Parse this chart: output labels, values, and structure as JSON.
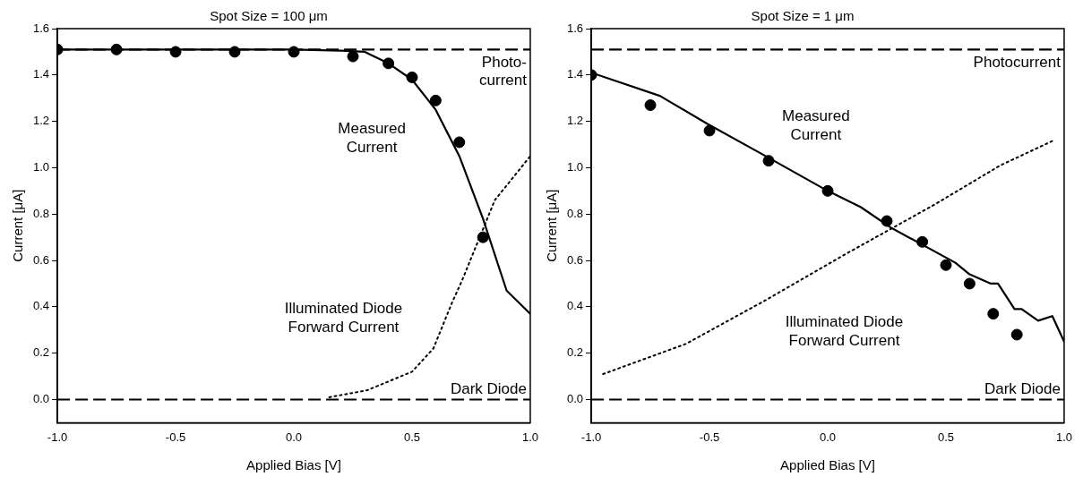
{
  "chart_data": [
    {
      "type": "line",
      "title": "Spot Size = 100 μm",
      "xlabel": "Applied Bias [V]",
      "ylabel": "Current [μA]",
      "xlim": [
        -1,
        1
      ],
      "xticks": [
        {
          "value": -1,
          "label": "-1.0"
        },
        {
          "value": -0.5,
          "label": "-0.5"
        },
        {
          "value": 0,
          "label": "0.0"
        },
        {
          "value": 0.5,
          "label": "0.5"
        },
        {
          "value": 1,
          "label": "1.0"
        }
      ],
      "ylim": [
        -0.1,
        1.6
      ],
      "yticks": [
        {
          "value": 0,
          "label": "0.0"
        },
        {
          "value": 0.2,
          "label": "0.2"
        },
        {
          "value": 0.4,
          "label": "0.4"
        },
        {
          "value": 0.6,
          "label": "0.6"
        },
        {
          "value": 0.8,
          "label": "0.8"
        },
        {
          "value": 1,
          "label": "1.0"
        },
        {
          "value": 1.2,
          "label": "1.2"
        },
        {
          "value": 1.4,
          "label": "1.4"
        },
        {
          "value": 1.6,
          "label": "1.6"
        }
      ],
      "grid": false,
      "legend": false,
      "series": [
        {
          "type": "line",
          "color": "#000000",
          "line_style": "solid",
          "marker": "none",
          "x": [
            -1,
            -0.5,
            0,
            0.2,
            0.3,
            0.4,
            0.5,
            0.6,
            0.7,
            0.8,
            0.9,
            0.95,
            1
          ],
          "values": [
            1.51,
            1.51,
            1.51,
            1.505,
            1.5,
            1.45,
            1.38,
            1.25,
            1.05,
            0.78,
            0.47,
            0.42,
            0.37
          ]
        },
        {
          "type": "line",
          "color": "#000000",
          "line_style": "dotted",
          "marker": "none",
          "x": [
            0.15,
            0.31,
            0.5,
            0.59,
            0.67,
            0.71,
            0.77,
            0.85,
            1
          ],
          "values": [
            0.01,
            0.04,
            0.12,
            0.22,
            0.42,
            0.51,
            0.66,
            0.86,
            1.05
          ]
        },
        {
          "type": "scatter",
          "color": "#000000",
          "marker": "circle",
          "x": [
            -1,
            -0.75,
            -0.5,
            -0.25,
            0,
            0.25,
            0.4,
            0.5,
            0.6,
            0.7,
            0.8
          ],
          "values": [
            1.51,
            1.51,
            1.5,
            1.5,
            1.5,
            1.48,
            1.45,
            1.39,
            1.29,
            1.11,
            0.7
          ]
        }
      ],
      "ref_lines": [
        {
          "axis": "y",
          "value": 1.51,
          "label": "Photo-\ncurrent",
          "line_style": "dashed",
          "color": "#000000"
        },
        {
          "axis": "y",
          "value": 0,
          "label": "Dark Diode",
          "line_style": "dashed",
          "color": "#000000"
        }
      ],
      "annotations": [
        "Measured\nCurrent",
        "Illuminated Diode\nForward Current"
      ]
    },
    {
      "type": "line",
      "title": "Spot Size = 1 μm",
      "xlabel": "Applied Bias [V]",
      "ylabel": "Current [μA]",
      "xlim": [
        -1,
        1
      ],
      "xticks": [
        {
          "value": -1,
          "label": "-1.0"
        },
        {
          "value": -0.5,
          "label": "-0.5"
        },
        {
          "value": 0,
          "label": "0.0"
        },
        {
          "value": 0.5,
          "label": "0.5"
        },
        {
          "value": 1,
          "label": "1.0"
        }
      ],
      "ylim": [
        -0.1,
        1.6
      ],
      "yticks": [
        {
          "value": 0,
          "label": "0.0"
        },
        {
          "value": 0.2,
          "label": "0.2"
        },
        {
          "value": 0.4,
          "label": "0.4"
        },
        {
          "value": 0.6,
          "label": "0.6"
        },
        {
          "value": 0.8,
          "label": "0.8"
        },
        {
          "value": 1,
          "label": "1.0"
        },
        {
          "value": 1.2,
          "label": "1.2"
        },
        {
          "value": 1.4,
          "label": "1.4"
        },
        {
          "value": 1.6,
          "label": "1.6"
        }
      ],
      "grid": false,
      "legend": false,
      "series": [
        {
          "type": "line",
          "color": "#000000",
          "line_style": "solid",
          "marker": "none",
          "x": [
            -1,
            -0.71,
            -0.51,
            -0.28,
            0,
            0.14,
            0.27,
            0.54,
            0.6,
            0.69,
            0.72,
            0.79,
            0.82,
            0.89,
            0.95,
            1
          ],
          "values": [
            1.41,
            1.31,
            1.19,
            1.06,
            0.9,
            0.83,
            0.74,
            0.59,
            0.54,
            0.5,
            0.5,
            0.39,
            0.39,
            0.34,
            0.36,
            0.25
          ]
        },
        {
          "type": "line",
          "color": "#000000",
          "line_style": "dotted",
          "marker": "none",
          "x": [
            -0.95,
            -0.6,
            -0.26,
            0.08,
            0.45,
            0.73,
            0.96
          ],
          "values": [
            0.11,
            0.24,
            0.43,
            0.63,
            0.84,
            1.01,
            1.12
          ]
        },
        {
          "type": "scatter",
          "color": "#000000",
          "marker": "circle",
          "x": [
            -1,
            -0.75,
            -0.5,
            -0.25,
            0,
            0.25,
            0.4,
            0.5,
            0.6,
            0.7,
            0.8
          ],
          "values": [
            1.4,
            1.27,
            1.16,
            1.03,
            0.9,
            0.77,
            0.68,
            0.58,
            0.5,
            0.37,
            0.28
          ]
        }
      ],
      "ref_lines": [
        {
          "axis": "y",
          "value": 1.51,
          "label": "Photocurrent",
          "line_style": "dashed",
          "color": "#000000"
        },
        {
          "axis": "y",
          "value": 0,
          "label": "Dark Diode",
          "line_style": "dashed",
          "color": "#000000"
        }
      ],
      "annotations": [
        "Measured\nCurrent",
        "Illuminated Diode\nForward Current"
      ]
    }
  ]
}
